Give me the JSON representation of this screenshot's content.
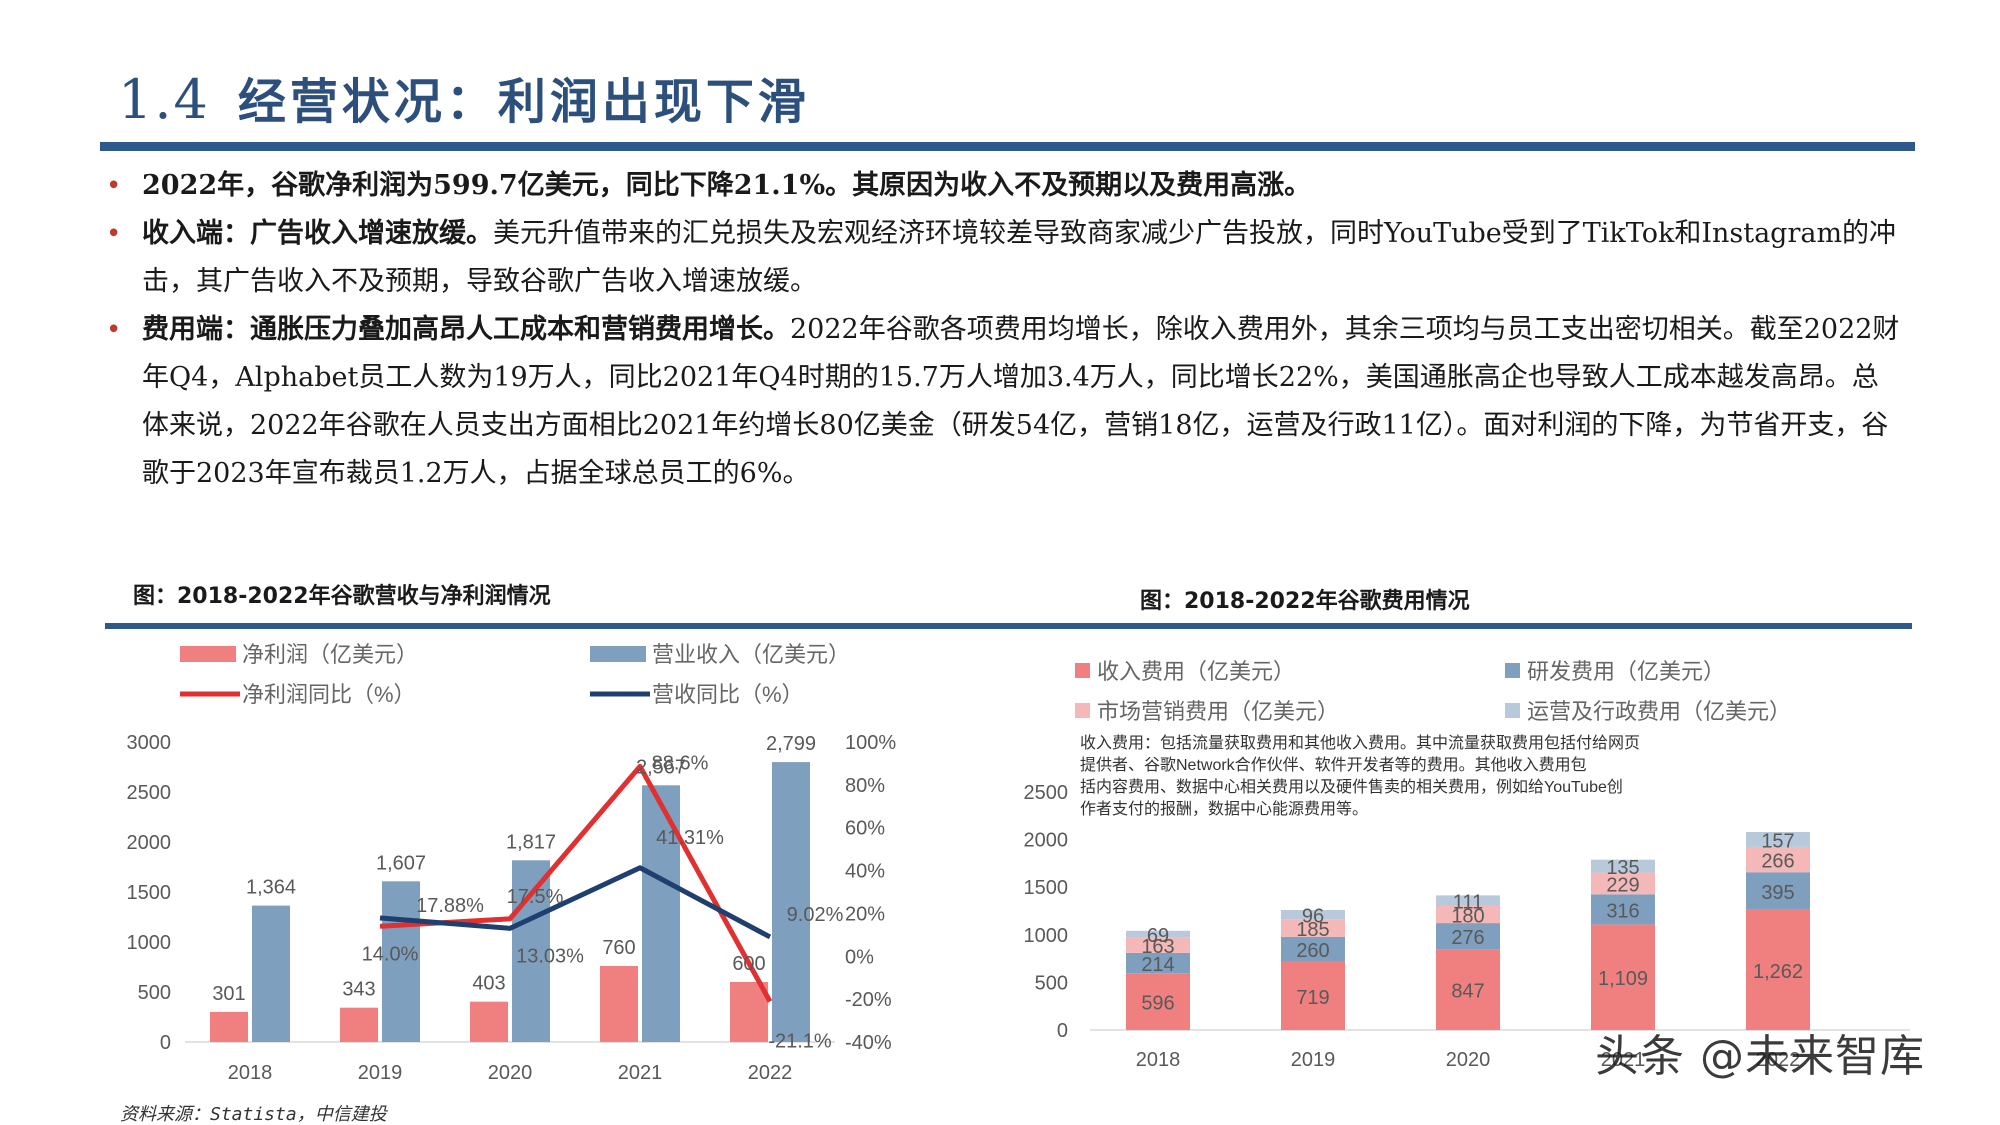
{
  "header": {
    "number": "1.4",
    "title": "经营状况：利润出现下滑"
  },
  "bullets": [
    {
      "lead": "2022年，谷歌净利润为599.7亿美元，同比下降21.1%。其原因为收入不及预期以及费用高涨。",
      "text": ""
    },
    {
      "lead": "收入端：广告收入增速放缓。",
      "text": "美元升值带来的汇兑损失及宏观经济环境较差导致商家减少广告投放，同时YouTube受到了TikTok和Instagram的冲击，其广告收入不及预期，导致谷歌广告收入增速放缓。"
    },
    {
      "lead": "费用端：通胀压力叠加高昂人工成本和营销费用增长。",
      "text": "2022年谷歌各项费用均增长，除收入费用外，其余三项均与员工支出密切相关。截至2022财年Q4，Alphabet员工人数为19万人，同比2021年Q4时期的15.7万人增加3.4万人，同比增长22%，美国通胀高企也导致人工成本越发高昂。总体来说，2022年谷歌在人员支出方面相比2021年约增长80亿美金（研发54亿，营销18亿，运营及行政11亿）。面对利润的下降，为节省开支，谷歌于2023年宣布裁员1.2万人，占据全球总员工的6%。"
    }
  ],
  "source": "资料来源：Statista，中信建投",
  "watermark": "头条 @未来智库",
  "colors": {
    "navy": "#2e5a8a",
    "net_profit": "#f08080",
    "revenue": "#7f9fbf",
    "profit_line": "#e03030",
    "revenue_line": "#1f3f6f",
    "bullet": "#c0392b"
  },
  "chart_data": [
    {
      "type": "bar",
      "title": "图：2018-2022年谷歌营收与净利润情况",
      "categories": [
        "2018",
        "2019",
        "2020",
        "2021",
        "2022"
      ],
      "series": [
        {
          "name": "净利润（亿美元）",
          "kind": "bar",
          "axis": "left",
          "values": [
            301,
            343,
            403,
            760,
            600
          ],
          "labels": [
            "301",
            "343",
            "403",
            "760",
            "600"
          ]
        },
        {
          "name": "营业收入（亿美元）",
          "kind": "bar",
          "axis": "left",
          "values": [
            1364,
            1607,
            1817,
            2567,
            2799
          ],
          "labels": [
            "1,364",
            "1,607",
            "1,817",
            "2,567",
            "2,799"
          ]
        },
        {
          "name": "净利润同比（%）",
          "kind": "line",
          "axis": "right",
          "values": [
            null,
            14.0,
            17.5,
            88.6,
            -21.1
          ],
          "labels": [
            "",
            "14.0%",
            "17.5%",
            "88.6%",
            "-21.1%"
          ]
        },
        {
          "name": "营收同比（%）",
          "kind": "line",
          "axis": "right",
          "values": [
            null,
            17.88,
            13.03,
            41.31,
            9.02
          ],
          "labels": [
            "",
            "17.88%",
            "13.03%",
            "41.31%",
            "9.02%"
          ]
        }
      ],
      "yleft": {
        "min": 0,
        "max": 3000,
        "ticks": [
          "0",
          "500",
          "1000",
          "1500",
          "2000",
          "2500",
          "3000"
        ]
      },
      "yright": {
        "min": -40,
        "max": 100,
        "ticks": [
          "-40%",
          "-20%",
          "0%",
          "20%",
          "40%",
          "60%",
          "80%",
          "100%"
        ]
      },
      "legend": "top"
    },
    {
      "type": "bar",
      "stacked": true,
      "title": "图：2018-2022年谷歌费用情况",
      "note": "收入费用：包括流量获取费用和其他收入费用。其中流量获取费用包括付给网页提供者、谷歌Network合作伙伴、软件开发者等的费用。其他收入费用包括内容费用、数据中心相关费用以及硬件售卖的相关费用，例如给YouTube创作者支付的报酬，数据中心能源费用等。",
      "categories": [
        "2018",
        "2019",
        "2020",
        "2021",
        "2022"
      ],
      "series": [
        {
          "name": "收入费用（亿美元）",
          "values": [
            596,
            719,
            847,
            1109,
            1262
          ],
          "labels": [
            "596",
            "719",
            "847",
            "1,109",
            "1,262"
          ]
        },
        {
          "name": "研发费用（亿美元）",
          "values": [
            214,
            260,
            276,
            316,
            395
          ],
          "labels": [
            "214",
            "260",
            "276",
            "316",
            "395"
          ]
        },
        {
          "name": "市场营销费用（亿美元）",
          "values": [
            163,
            185,
            180,
            229,
            266
          ],
          "labels": [
            "163",
            "185",
            "180",
            "229",
            "266"
          ]
        },
        {
          "name": "运营及行政费用（亿美元）",
          "values": [
            69,
            96,
            111,
            135,
            157
          ],
          "labels": [
            "69",
            "96",
            "111",
            "135",
            "157"
          ]
        }
      ],
      "ylim": [
        0,
        2500
      ],
      "ticks": [
        "0",
        "500",
        "1000",
        "1500",
        "2000",
        "2500"
      ],
      "legend": "top"
    }
  ]
}
